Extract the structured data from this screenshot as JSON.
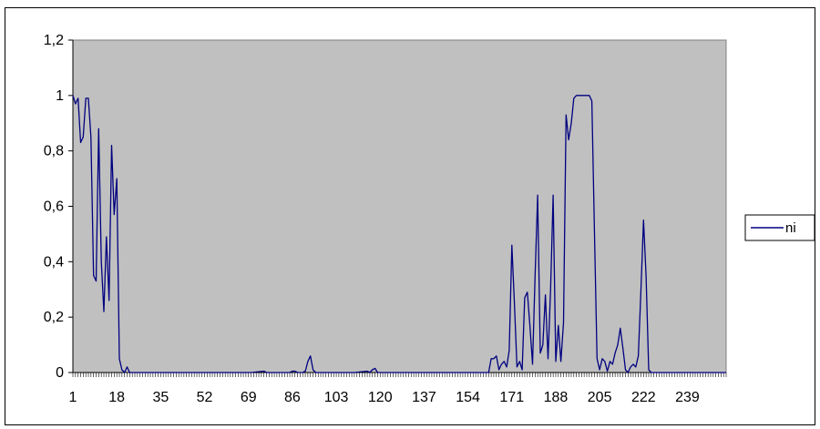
{
  "chart_data": {
    "type": "line",
    "xlabel": "",
    "ylabel": "",
    "xlim": [
      1,
      254
    ],
    "ylim": [
      0,
      1.2
    ],
    "grid": false,
    "legend_position": "right",
    "plot_background": "#c0c0c0",
    "line_color": "#000080",
    "y_ticks": [
      "0",
      "0,2",
      "0,4",
      "0,6",
      "0,8",
      "1",
      "1,2"
    ],
    "x_ticks": [
      "1",
      "18",
      "35",
      "52",
      "69",
      "86",
      "103",
      "120",
      "137",
      "154",
      "171",
      "188",
      "205",
      "222",
      "239"
    ],
    "series": [
      {
        "name": "ni",
        "x": [
          1,
          2,
          3,
          4,
          5,
          6,
          7,
          8,
          9,
          10,
          11,
          12,
          13,
          14,
          15,
          16,
          17,
          18,
          19,
          20,
          21,
          22,
          23,
          30,
          40,
          50,
          60,
          70,
          75,
          76,
          77,
          80,
          85,
          86,
          87,
          88,
          90,
          91,
          92,
          93,
          94,
          95,
          96,
          97,
          100,
          110,
          115,
          116,
          117,
          118,
          119,
          120,
          125,
          140,
          150,
          160,
          161,
          162,
          163,
          164,
          165,
          166,
          167,
          168,
          169,
          170,
          171,
          172,
          173,
          174,
          175,
          176,
          177,
          178,
          179,
          180,
          181,
          182,
          183,
          184,
          185,
          186,
          187,
          188,
          189,
          190,
          191,
          192,
          193,
          194,
          195,
          196,
          197,
          198,
          199,
          200,
          201,
          202,
          203,
          204,
          205,
          206,
          207,
          208,
          209,
          210,
          211,
          212,
          213,
          214,
          215,
          216,
          217,
          218,
          219,
          220,
          221,
          222,
          223,
          224,
          225,
          226,
          230,
          240,
          254
        ],
        "values": [
          1,
          0.97,
          0.99,
          0.83,
          0.85,
          0.99,
          0.99,
          0.85,
          0.35,
          0.33,
          0.88,
          0.4,
          0.22,
          0.49,
          0.26,
          0.82,
          0.57,
          0.7,
          0.05,
          0.01,
          0,
          0.02,
          0,
          0,
          0,
          0,
          0,
          0,
          0.005,
          0,
          0,
          0,
          0,
          0.005,
          0.005,
          0,
          0,
          0.005,
          0.04,
          0.06,
          0.01,
          0,
          0,
          0,
          0,
          0,
          0.005,
          0,
          0.01,
          0.015,
          0,
          0,
          0,
          0,
          0,
          0,
          0,
          0,
          0.05,
          0.05,
          0.06,
          0.01,
          0.03,
          0.04,
          0.02,
          0.08,
          0.46,
          0.25,
          0.02,
          0.04,
          0.01,
          0.27,
          0.29,
          0.17,
          0.03,
          0.35,
          0.64,
          0.07,
          0.1,
          0.28,
          0.05,
          0.3,
          0.64,
          0.04,
          0.17,
          0.04,
          0.18,
          0.93,
          0.84,
          0.9,
          0.99,
          1,
          1,
          1,
          1,
          1,
          1,
          0.98,
          0.5,
          0.05,
          0.01,
          0.05,
          0.04,
          0.005,
          0.04,
          0.03,
          0.07,
          0.1,
          0.16,
          0.09,
          0.01,
          0,
          0.02,
          0.03,
          0.02,
          0.06,
          0.3,
          0.55,
          0.35,
          0.01,
          0,
          0,
          0,
          0,
          0
        ]
      }
    ]
  }
}
